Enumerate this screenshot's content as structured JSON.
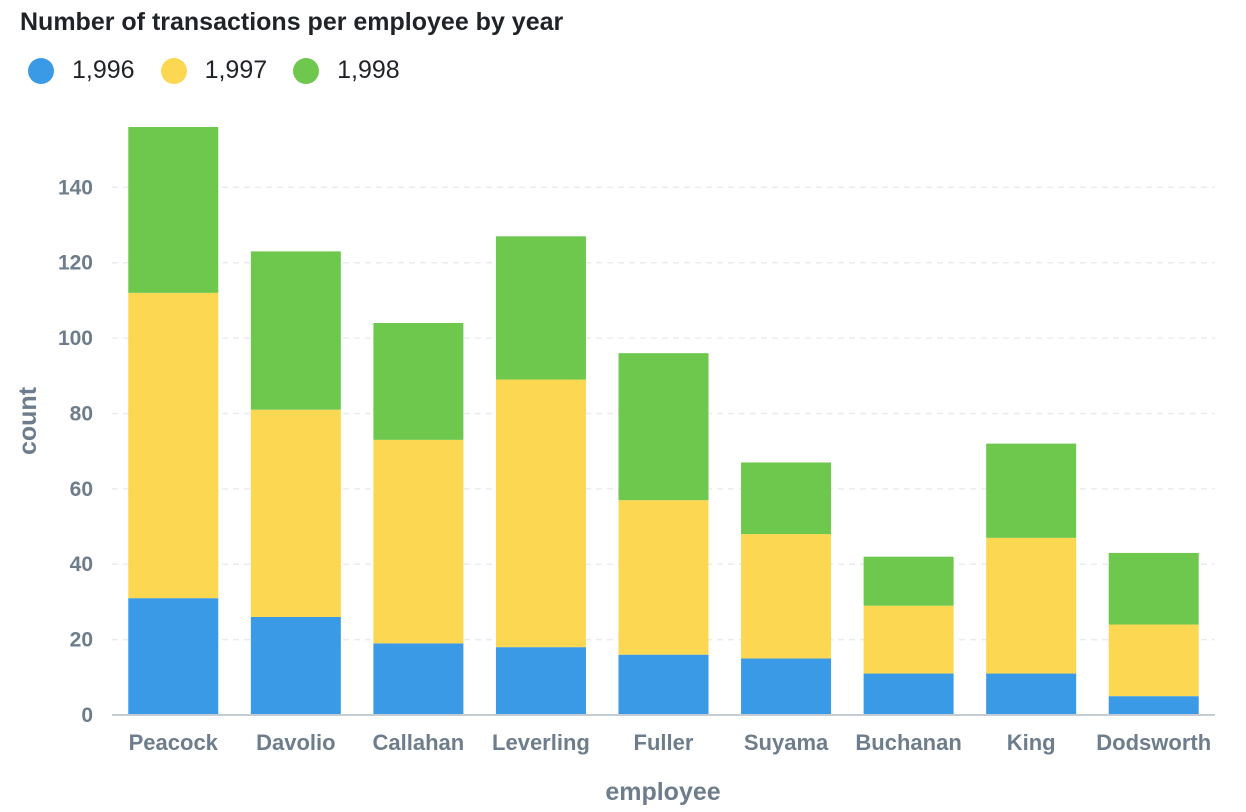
{
  "chart_data": {
    "type": "bar",
    "stacked": true,
    "title": "Number of transactions per employee by year",
    "xlabel": "employee",
    "ylabel": "count",
    "ylim": [
      0,
      156
    ],
    "yticks": [
      0,
      20,
      40,
      60,
      80,
      100,
      120,
      140
    ],
    "grid": true,
    "legend_position": "top-left",
    "categories": [
      "Peacock",
      "Davolio",
      "Callahan",
      "Leverling",
      "Fuller",
      "Suyama",
      "Buchanan",
      "King",
      "Dodsworth"
    ],
    "series": [
      {
        "name": "1,996",
        "color": "#3b9ae6",
        "values": [
          31,
          26,
          19,
          18,
          16,
          15,
          11,
          11,
          5
        ]
      },
      {
        "name": "1,997",
        "color": "#fcd752",
        "values": [
          81,
          55,
          54,
          71,
          41,
          33,
          18,
          36,
          19
        ]
      },
      {
        "name": "1,998",
        "color": "#6ec84e",
        "values": [
          44,
          42,
          31,
          38,
          39,
          19,
          13,
          25,
          19
        ]
      }
    ]
  }
}
